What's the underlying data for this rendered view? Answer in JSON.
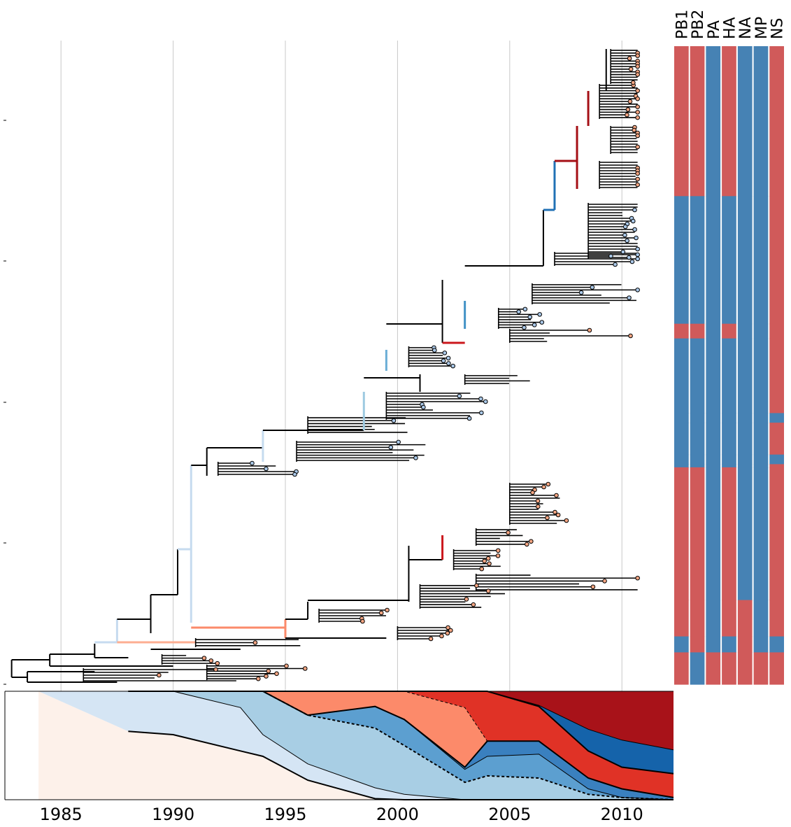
{
  "chart_data": {
    "type": "phylogenetic-tree-with-stacked-area",
    "xlim": [
      1982.5,
      2012.3
    ],
    "x_ticks": [
      1985,
      1990,
      1995,
      2000,
      2005,
      2010
    ],
    "x_tick_labels": [
      "1985",
      "1990",
      "1995",
      "2000",
      "2005",
      "2010"
    ],
    "grid": "vertical",
    "colors": {
      "red_tip": "#f4a582",
      "blue_tip": "#aac8e8",
      "segment_red": "#d05a5a",
      "segment_blue": "#4682b4",
      "branch_default": "#000000"
    },
    "segments": {
      "labels": [
        "PB1",
        "PB2",
        "PA",
        "HA",
        "NA",
        "MP",
        "NS"
      ],
      "bands": [
        {
          "from": 0.0,
          "to": 0.235,
          "states": [
            "r",
            "r",
            "b",
            "r",
            "b",
            "b",
            "r"
          ]
        },
        {
          "from": 0.235,
          "to": 0.435,
          "states": [
            "b",
            "b",
            "b",
            "b",
            "b",
            "b",
            "r"
          ]
        },
        {
          "from": 0.435,
          "to": 0.458,
          "states": [
            "r",
            "r",
            "b",
            "r",
            "b",
            "b",
            "r"
          ]
        },
        {
          "from": 0.458,
          "to": 0.575,
          "states": [
            "b",
            "b",
            "b",
            "b",
            "b",
            "b",
            "r"
          ]
        },
        {
          "from": 0.575,
          "to": 0.59,
          "states": [
            "b",
            "b",
            "b",
            "b",
            "b",
            "b",
            "b"
          ]
        },
        {
          "from": 0.59,
          "to": 0.64,
          "states": [
            "b",
            "b",
            "b",
            "b",
            "b",
            "b",
            "r"
          ]
        },
        {
          "from": 0.64,
          "to": 0.655,
          "states": [
            "b",
            "b",
            "b",
            "b",
            "b",
            "b",
            "b"
          ]
        },
        {
          "from": 0.655,
          "to": 0.66,
          "states": [
            "b",
            "b",
            "b",
            "b",
            "b",
            "b",
            "r"
          ]
        },
        {
          "from": 0.66,
          "to": 0.868,
          "states": [
            "r",
            "r",
            "b",
            "r",
            "b",
            "b",
            "r"
          ]
        },
        {
          "from": 0.868,
          "to": 0.925,
          "states": [
            "r",
            "r",
            "b",
            "r",
            "r",
            "b",
            "r"
          ]
        },
        {
          "from": 0.925,
          "to": 0.95,
          "states": [
            "b",
            "r",
            "b",
            "b",
            "r",
            "b",
            "b"
          ]
        },
        {
          "from": 0.95,
          "to": 1.0,
          "states": [
            "r",
            "b",
            "r",
            "r",
            "r",
            "r",
            "r"
          ]
        }
      ]
    },
    "stacked_area": {
      "x": [
        1984.0,
        1988.0,
        1990.0,
        1993.0,
        1994.0,
        1996.0,
        1999.0,
        2000.3,
        2003.0,
        2004.0,
        2006.3,
        2008.5,
        2010.0,
        2012.3
      ],
      "series": [
        {
          "color": "#fdf1ea",
          "values": [
            1.0,
            0.63,
            0.6,
            0.45,
            0.4,
            0.18,
            0.01,
            0.0,
            0.0,
            0.0,
            0.0,
            0.0,
            0.0,
            0.0
          ]
        },
        {
          "color": "#d5e5f4",
          "values": [
            0.0,
            0.37,
            0.4,
            0.4,
            0.2,
            0.15,
            0.1,
            0.05,
            0.0,
            0.0,
            0.0,
            0.0,
            0.0,
            0.0
          ]
        },
        {
          "color": "#a8cee4",
          "values": [
            0.0,
            0.0,
            0.0,
            0.15,
            0.4,
            0.45,
            0.55,
            0.45,
            0.16,
            0.22,
            0.2,
            0.05,
            0.02,
            0.0
          ]
        },
        {
          "color": "#5c9fd0",
          "values": [
            0.0,
            0.0,
            0.0,
            0.0,
            0.0,
            0.0,
            0.2,
            0.24,
            0.12,
            0.18,
            0.22,
            0.05,
            0.0,
            0.0
          ]
        },
        {
          "color": "#3a80bf",
          "values": [
            0.0,
            0.0,
            0.0,
            0.0,
            0.0,
            0.0,
            0.0,
            0.0,
            0.02,
            0.14,
            0.12,
            0.1,
            0.08,
            0.02
          ]
        },
        {
          "color": "#fc8a6a",
          "values": [
            0.0,
            0.0,
            0.0,
            0.0,
            0.0,
            0.22,
            0.14,
            0.26,
            0.55,
            0.0,
            0.0,
            0.0,
            0.0,
            0.0
          ]
        },
        {
          "color": "#e03226",
          "values": [
            0.0,
            0.0,
            0.0,
            0.0,
            0.0,
            0.0,
            0.0,
            0.0,
            0.15,
            0.46,
            0.32,
            0.25,
            0.2,
            0.22
          ]
        },
        {
          "color": "#1563aa",
          "values": [
            0.0,
            0.0,
            0.0,
            0.0,
            0.0,
            0.0,
            0.0,
            0.0,
            0.0,
            0.0,
            0.01,
            0.2,
            0.25,
            0.22
          ]
        },
        {
          "color": "#a81219",
          "values": [
            0.0,
            0.0,
            0.0,
            0.0,
            0.0,
            0.0,
            0.0,
            0.0,
            0.0,
            0.0,
            0.13,
            0.35,
            0.45,
            0.54
          ]
        }
      ]
    }
  }
}
